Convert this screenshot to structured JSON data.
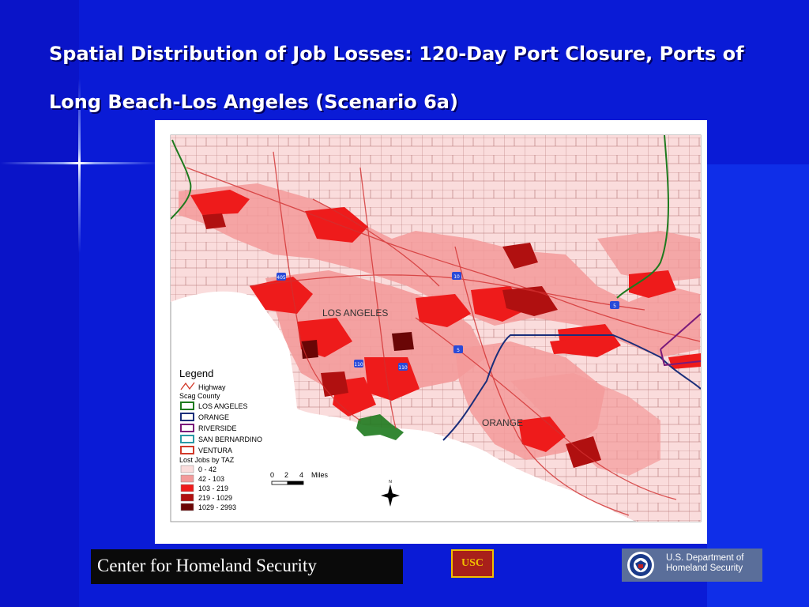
{
  "slide": {
    "title": "Spatial Distribution of Job Losses: 120-Day Port Closure, Ports of Long Beach-Los Angeles (Scenario 6a)"
  },
  "map": {
    "place_labels": {
      "los_angeles": "LOS ANGELES",
      "orange": "ORANGE"
    },
    "highway_shields": [
      "405",
      "10",
      "110",
      "110",
      "5",
      "5"
    ],
    "legend": {
      "title": "Legend",
      "highway_label": "Highway",
      "county_heading": "Scag County",
      "counties": [
        {
          "label": "LOS ANGELES",
          "color": "#1e7a1e"
        },
        {
          "label": "ORANGE",
          "color": "#1a2e7a"
        },
        {
          "label": "RIVERSIDE",
          "color": "#7a1a7a"
        },
        {
          "label": "SAN BERNARDINO",
          "color": "#2a9aa6"
        },
        {
          "label": "VENTURA",
          "color": "#d23a2a"
        }
      ],
      "loss_heading": "Lost Jobs by TAZ",
      "classes": [
        {
          "label": "0 - 42",
          "color": "#fadcdc"
        },
        {
          "label": "42 - 103",
          "color": "#f39a9a"
        },
        {
          "label": "103 - 219",
          "color": "#ee1b1b"
        },
        {
          "label": "219 - 1029",
          "color": "#b01010"
        },
        {
          "label": "1029 - 2993",
          "color": "#6a0606"
        }
      ]
    },
    "scale_bar": {
      "ticks": [
        "0",
        "2",
        "4"
      ],
      "unit": "Miles"
    },
    "north_arrow_label": "N"
  },
  "footer": {
    "center_logo_text": "Center for Homeland Security",
    "usc_seal_text": "USC",
    "dhs_logo_line1": "U.S. Department of",
    "dhs_logo_line2": "Homeland Security"
  }
}
